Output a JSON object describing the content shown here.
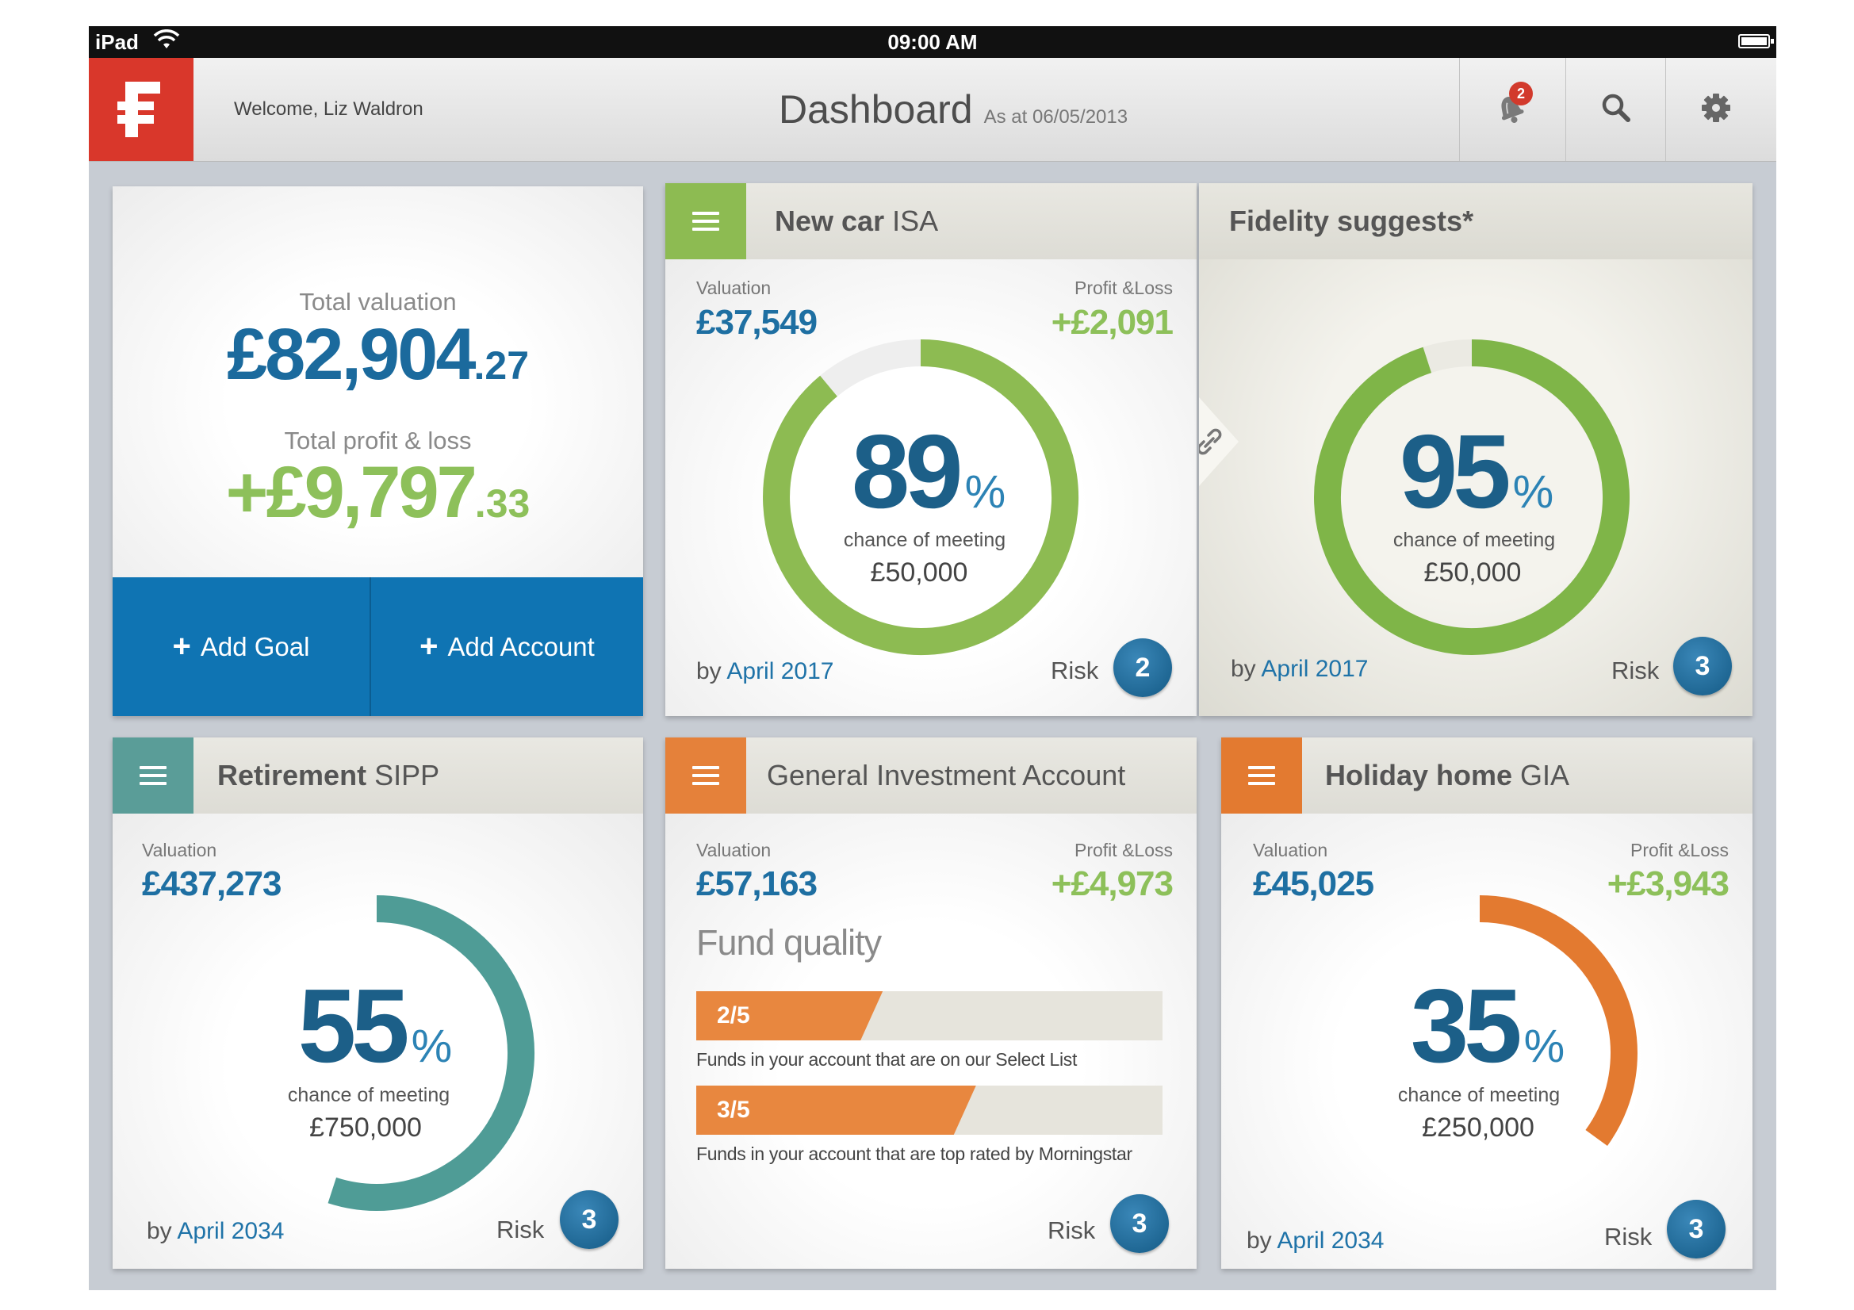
{
  "status_bar": {
    "carrier": "iPad",
    "time": "09:00 AM"
  },
  "header": {
    "welcome": "Welcome, Liz Waldron",
    "title": "Dashboard",
    "as_at": "As at 06/05/2013",
    "notification_count": "2",
    "logo_letter": "F"
  },
  "summary": {
    "total_valuation_label": "Total valuation",
    "total_valuation_main": "£82,904",
    "total_valuation_decimal": ".27",
    "total_pl_label": "Total profit & loss",
    "total_pl_main": "+£9,797",
    "total_pl_decimal": ".33",
    "add_goal": "Add Goal",
    "add_account": "Add Account"
  },
  "cards": [
    {
      "title_bold": "New car",
      "title_rest": " ISA",
      "valuation_label": "Valuation",
      "valuation": "£37,549",
      "pl_label": "Profit &Loss",
      "pl": "+£2,091",
      "percent": "89",
      "percent_unit": "%",
      "percent_value": 89,
      "chance": "chance of meeting",
      "target": "£50,000",
      "by": "by",
      "date": "April 2017",
      "risk_label": "Risk",
      "risk": "2",
      "color": "#8dbb52"
    },
    {
      "title_bold": "Fidelity suggests*",
      "title_rest": "",
      "percent": "95",
      "percent_unit": "%",
      "percent_value": 95,
      "chance": "chance of meeting",
      "target": "£50,000",
      "by": "by",
      "date": "April 2017",
      "risk_label": "Risk",
      "risk": "3",
      "color": "#7fb548"
    },
    {
      "title_bold": "Retirement",
      "title_rest": " SIPP",
      "valuation_label": "Valuation",
      "valuation": "£437,273",
      "percent": "55",
      "percent_unit": "%",
      "percent_value": 55,
      "chance": "chance of meeting",
      "target": "£750,000",
      "by": "by",
      "date": "April 2034",
      "risk_label": "Risk",
      "risk": "3",
      "color": "#4f9c96"
    },
    {
      "title_bold": "",
      "title_rest": "General Investment Account",
      "valuation_label": "Valuation",
      "valuation": "£57,163",
      "pl_label": "Profit &Loss",
      "pl": "+£4,973",
      "fund_quality_title": "Fund quality",
      "fund_bars": [
        {
          "label": "2/5",
          "value": 0.4,
          "description": "Funds in your account that are on our Select List"
        },
        {
          "label": "3/5",
          "value": 0.6,
          "description": "Funds in your account that are top rated by Morningstar"
        }
      ],
      "risk_label": "Risk",
      "risk": "3",
      "color": "#e5813a"
    },
    {
      "title_bold": "Holiday home",
      "title_rest": " GIA",
      "valuation_label": "Valuation",
      "valuation": "£45,025",
      "pl_label": "Profit &Loss",
      "pl": "+£3,943",
      "percent": "35",
      "percent_unit": "%",
      "percent_value": 35,
      "chance": "chance of meeting",
      "target": "£250,000",
      "by": "by",
      "date": "April 2034",
      "risk_label": "Risk",
      "risk": "3",
      "color": "#e37a30"
    }
  ],
  "icons": {
    "logo": "fidelity-logo-icon",
    "notification": "bell-icon",
    "search": "search-icon",
    "settings": "gear-icon",
    "menu": "hamburger-menu-icon",
    "link": "link-icon"
  }
}
